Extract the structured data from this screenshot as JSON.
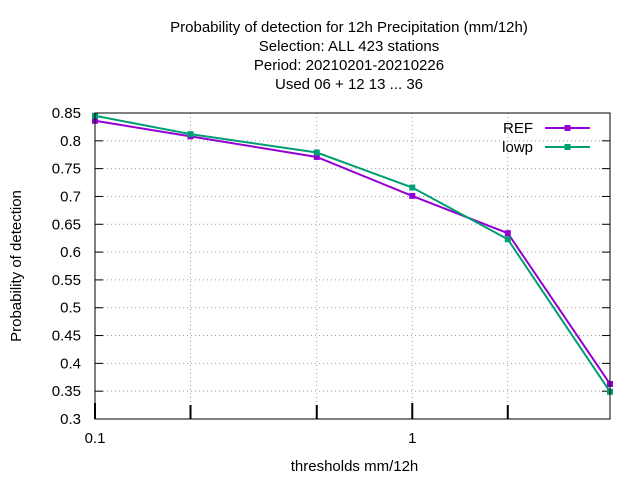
{
  "chart_data": {
    "type": "line",
    "title_lines": [
      "Probability of detection  for 12h Precipitation (mm/12h)",
      "Selection: ALL     423 stations",
      "Period: 20210201-20210226",
      "Used  06  + 12 13 ... 36"
    ],
    "xlabel": "thresholds mm/12h",
    "ylabel": "Probability of detection",
    "x_scale": "log",
    "xlim": [
      0.1,
      4.2
    ],
    "ylim": [
      0.3,
      0.85
    ],
    "x_major_ticks": [
      0.1,
      1
    ],
    "x_major_tick_labels": [
      "0.1",
      "1"
    ],
    "x_minor_ticks": [
      0.2,
      0.5,
      2
    ],
    "y_ticks": [
      0.3,
      0.35,
      0.4,
      0.45,
      0.5,
      0.55,
      0.6,
      0.65,
      0.7,
      0.75,
      0.8,
      0.85
    ],
    "y_tick_labels": [
      "0.3",
      "0.35",
      "0.4",
      "0.45",
      "0.5",
      "0.55",
      "0.6",
      "0.65",
      "0.7",
      "0.75",
      "0.8",
      "0.85"
    ],
    "grid": true,
    "legend_position": "top-right",
    "x": [
      0.1,
      0.2,
      0.5,
      1,
      2,
      4.2
    ],
    "series": [
      {
        "name": "REF",
        "color": "#9400d3",
        "values": [
          0.836,
          0.808,
          0.771,
          0.701,
          0.634,
          0.363
        ]
      },
      {
        "name": "lowp",
        "color": "#009e73",
        "values": [
          0.845,
          0.812,
          0.779,
          0.716,
          0.623,
          0.349
        ]
      }
    ]
  }
}
